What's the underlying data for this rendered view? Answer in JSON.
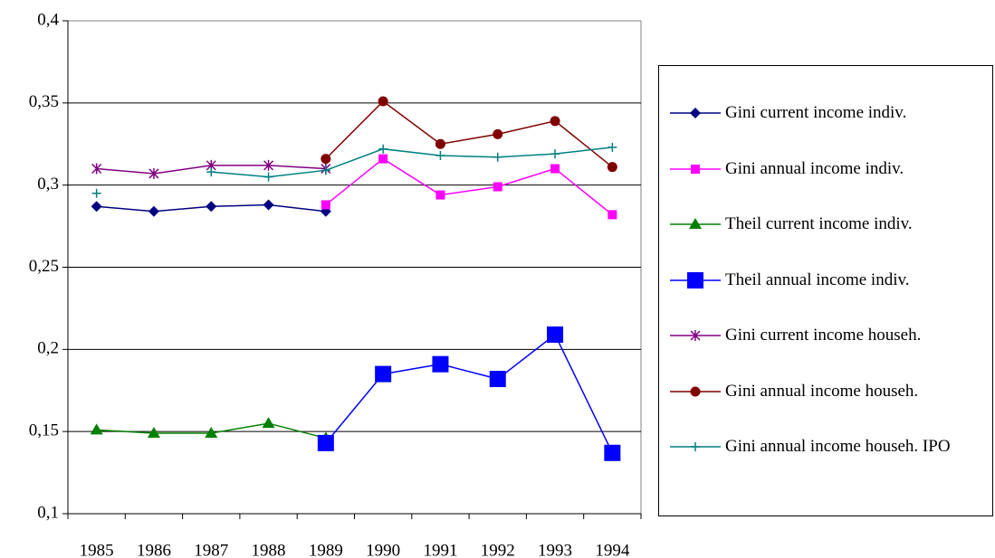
{
  "chart_data": {
    "type": "line",
    "categories": [
      "1985",
      "1986",
      "1987",
      "1988",
      "1989",
      "1990",
      "1991",
      "1992",
      "1993",
      "1994"
    ],
    "ylim": [
      0.1,
      0.4
    ],
    "yticks": [
      {
        "value": 0.1,
        "label": "0,1"
      },
      {
        "value": 0.15,
        "label": "0,15"
      },
      {
        "value": 0.2,
        "label": "0,2"
      },
      {
        "value": 0.25,
        "label": "0,25"
      },
      {
        "value": 0.3,
        "label": "0,3"
      },
      {
        "value": 0.35,
        "label": "0,35"
      },
      {
        "value": 0.4,
        "label": "0,4"
      }
    ],
    "grid": true,
    "legend": "right",
    "series": [
      {
        "name": "Gini current income indiv.",
        "color": "#000080",
        "marker": "diamond",
        "values": [
          0.287,
          0.284,
          0.287,
          0.288,
          0.284,
          null,
          null,
          null,
          null,
          null
        ]
      },
      {
        "name": "Gini annual income indiv.",
        "color": "#ff00ff",
        "marker": "square",
        "values": [
          null,
          null,
          null,
          null,
          0.288,
          0.316,
          0.294,
          0.299,
          0.31,
          0.282
        ]
      },
      {
        "name": "Theil current income indiv.",
        "color": "#008000",
        "marker": "triangle",
        "values": [
          0.151,
          0.149,
          0.149,
          0.155,
          0.146,
          null,
          null,
          null,
          null,
          null
        ]
      },
      {
        "name": "Theil annual income indiv.",
        "color": "#0000ff",
        "marker": "bigsquare",
        "values": [
          null,
          null,
          null,
          null,
          0.143,
          0.185,
          0.191,
          0.182,
          0.209,
          0.137
        ]
      },
      {
        "name": "Gini current income househ.",
        "color": "#800080",
        "marker": "star",
        "values": [
          0.31,
          0.307,
          0.312,
          0.312,
          0.31,
          null,
          null,
          null,
          null,
          null
        ]
      },
      {
        "name": "Gini annual income househ.",
        "color": "#800000",
        "marker": "circle",
        "values": [
          null,
          null,
          null,
          null,
          0.316,
          0.351,
          0.325,
          0.331,
          0.339,
          0.311
        ]
      },
      {
        "name": "Gini annual income househ. IPO",
        "color": "#008080",
        "marker": "plus",
        "values": [
          0.295,
          null,
          0.308,
          0.305,
          0.309,
          0.322,
          0.318,
          0.317,
          0.319,
          0.323
        ]
      }
    ]
  }
}
